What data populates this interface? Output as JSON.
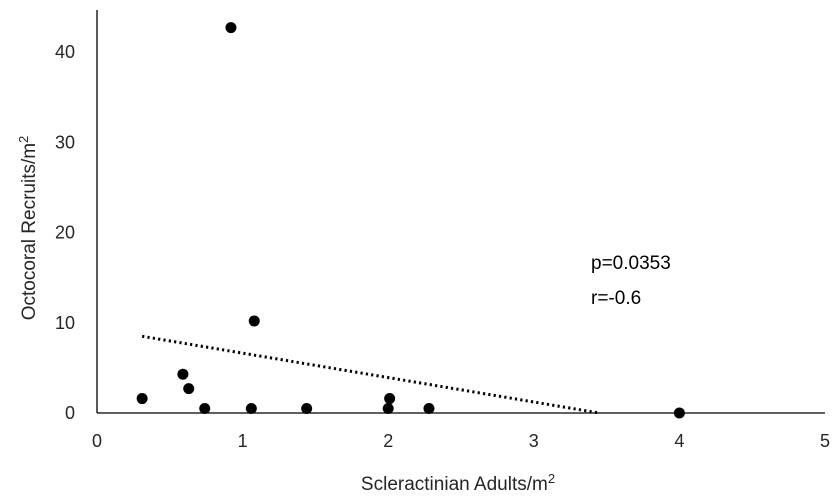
{
  "chart_data": {
    "type": "scatter",
    "title": "",
    "xlabel": "Scleractinian Adults/m",
    "xlabel_sup": "2",
    "ylabel": "Octocoral Recruits/m",
    "ylabel_sup": "2",
    "xlim": [
      0,
      5
    ],
    "ylim": [
      0,
      45
    ],
    "x_ticks": [
      0,
      1,
      2,
      3,
      4,
      5
    ],
    "y_ticks": [
      0,
      10,
      20,
      30,
      40
    ],
    "grid": false,
    "legend": "none",
    "marker_color": "#000000",
    "points": [
      {
        "x": 0.31,
        "y": 1.6
      },
      {
        "x": 0.59,
        "y": 4.3
      },
      {
        "x": 0.63,
        "y": 2.7
      },
      {
        "x": 0.74,
        "y": 0.5
      },
      {
        "x": 0.92,
        "y": 42.7
      },
      {
        "x": 1.06,
        "y": 0.5
      },
      {
        "x": 1.08,
        "y": 10.2
      },
      {
        "x": 1.44,
        "y": 0.5
      },
      {
        "x": 2.0,
        "y": 0.5
      },
      {
        "x": 2.01,
        "y": 1.6
      },
      {
        "x": 2.28,
        "y": 0.5
      },
      {
        "x": 4.0,
        "y": 0.0
      }
    ],
    "trendline": {
      "style": "dotted",
      "from": {
        "x": 0.31,
        "y": 8.5
      },
      "to": {
        "x": 3.45,
        "y": 0.0
      }
    },
    "annotations": [
      "p=0.0353",
      "r=-0.6"
    ]
  }
}
